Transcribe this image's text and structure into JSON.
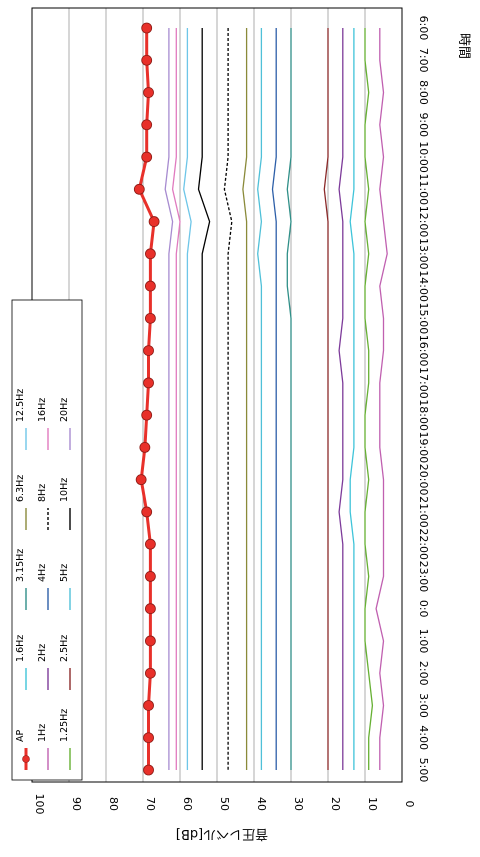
{
  "chart_data": {
    "type": "line",
    "orientation": "rotated 90 degrees clockwise (time axis runs top-to-bottom on the right, level axis runs right-to-left on the bottom)",
    "xlabel": "時間",
    "ylabel": "音圧レベル[dB]",
    "ylim": [
      0,
      100
    ],
    "yticks": [
      0,
      10,
      20,
      30,
      40,
      50,
      60,
      70,
      80,
      90,
      100
    ],
    "grid": true,
    "legend_position": "top-left (in rotated view)",
    "categories": [
      "6:00",
      "7:00",
      "8:00",
      "9:00",
      "10:00",
      "11:00",
      "12:00",
      "13:00",
      "14:00",
      "15:00",
      "16:00",
      "17:00",
      "18:00",
      "19:00",
      "20:00",
      "21:00",
      "22:00",
      "23:00",
      "0:00",
      "1:00",
      "2:00",
      "3:00",
      "4:00",
      "5:00"
    ],
    "category_labels": [
      "6:00",
      "7:00",
      "8:00",
      "9:00",
      "10:00",
      "11:00",
      "12:00",
      "13:00",
      "14:00",
      "15:00",
      "16:00",
      "17:00",
      "18:00",
      "19:00",
      "20:00",
      "21:00",
      "22:00",
      "23:00",
      "0:0",
      "1:00",
      "2:00",
      "3:00",
      "4:00",
      "5:00"
    ],
    "series": [
      {
        "name": "AP",
        "color": "#e8302a",
        "style": "thick-marker",
        "values": [
          69,
          69,
          68.5,
          69,
          69,
          71,
          67,
          68,
          68,
          68,
          68.5,
          68.5,
          69,
          69.5,
          70.5,
          69,
          68,
          68,
          68,
          68,
          68,
          68.5,
          68.5,
          68.5
        ]
      },
      {
        "name": "1Hz",
        "color": "#c060b0",
        "style": "solid",
        "values": [
          6,
          6,
          5,
          6,
          5,
          6,
          5,
          4,
          6,
          5,
          5,
          6,
          6,
          6,
          5,
          5,
          5,
          5,
          7,
          5,
          6,
          5,
          6,
          6
        ]
      },
      {
        "name": "1.25Hz",
        "color": "#66b033",
        "style": "solid",
        "values": [
          10,
          10,
          9,
          10,
          10,
          9,
          10,
          9,
          10,
          10,
          9,
          9,
          10,
          10,
          9,
          10,
          10,
          9,
          10,
          10,
          9,
          8,
          9,
          9
        ]
      },
      {
        "name": "1.6Hz",
        "color": "#3fc4d9",
        "style": "solid",
        "values": [
          13,
          13,
          13,
          13,
          13,
          13,
          14,
          13,
          13,
          13,
          13,
          13,
          13,
          13,
          14,
          14,
          13,
          13,
          13,
          13,
          13,
          13,
          13,
          13
        ]
      },
      {
        "name": "2Hz",
        "color": "#7d3b9a",
        "style": "solid",
        "values": [
          16,
          16,
          16,
          16,
          16,
          17,
          16,
          16,
          16,
          16,
          17,
          16,
          16,
          16,
          16,
          17,
          16,
          16,
          16,
          16,
          16,
          16,
          16,
          16
        ]
      },
      {
        "name": "2.5Hz",
        "color": "#8b2a2a",
        "style": "solid",
        "values": [
          20,
          20,
          20,
          20,
          20,
          21,
          20,
          20,
          20,
          20,
          20,
          20,
          20,
          20,
          20,
          20,
          20,
          20,
          20,
          20,
          20,
          20,
          20,
          20
        ]
      },
      {
        "name": "3.15Hz",
        "color": "#2f8f88",
        "style": "solid",
        "values": [
          30,
          30,
          30,
          30,
          30,
          31,
          30,
          31,
          31,
          30,
          30,
          30,
          30,
          30,
          30,
          30,
          30,
          30,
          30,
          30,
          30,
          30,
          30,
          30
        ]
      },
      {
        "name": "4Hz",
        "color": "#2d5fa8",
        "style": "solid",
        "values": [
          34,
          34,
          34,
          34,
          34,
          35,
          34,
          34,
          34,
          34,
          34,
          34,
          34,
          34,
          34,
          34,
          34,
          34,
          34,
          34,
          34,
          34,
          34,
          34
        ]
      },
      {
        "name": "5Hz",
        "color": "#4fc0d8",
        "style": "solid",
        "values": [
          38,
          38,
          38,
          38,
          38,
          39,
          38,
          39,
          38,
          38,
          38,
          38,
          38,
          38,
          38,
          38,
          38,
          38,
          38,
          38,
          38,
          38,
          38,
          38
        ]
      },
      {
        "name": "6.3Hz",
        "color": "#8a8a3a",
        "style": "solid",
        "values": [
          42,
          42,
          42,
          42,
          42,
          43,
          42,
          42,
          42,
          42,
          42,
          42,
          42,
          42,
          42,
          42,
          42,
          42,
          42,
          42,
          42,
          42,
          42,
          42
        ]
      },
      {
        "name": "8Hz",
        "color": "#000000",
        "style": "dashed",
        "values": [
          47,
          47,
          47,
          47,
          47,
          48,
          46,
          47,
          47,
          47,
          47,
          47,
          47,
          47,
          47,
          47,
          47,
          47,
          47,
          47,
          47,
          47,
          47,
          47
        ]
      },
      {
        "name": "10Hz",
        "color": "#000000",
        "style": "solid",
        "values": [
          54,
          54,
          54,
          54,
          54,
          55,
          52,
          54,
          54,
          54,
          54,
          54,
          54,
          54,
          54,
          54,
          54,
          54,
          54,
          54,
          54,
          54,
          54,
          54
        ]
      },
      {
        "name": "12.5Hz",
        "color": "#6ec6e8",
        "style": "solid",
        "values": [
          58,
          58,
          58,
          58,
          58,
          59,
          57,
          58,
          58,
          58,
          58,
          58,
          58,
          58,
          58,
          58,
          58,
          58,
          58,
          58,
          58,
          58,
          58,
          58
        ]
      },
      {
        "name": "16Hz",
        "color": "#e07bbf",
        "style": "solid",
        "values": [
          61,
          61,
          61,
          61,
          61,
          62,
          60,
          61,
          61,
          61,
          61,
          61,
          61,
          61,
          61,
          61,
          61,
          61,
          61,
          61,
          61,
          61,
          61,
          61
        ]
      },
      {
        "name": "20Hz",
        "color": "#a78bd0",
        "style": "solid",
        "values": [
          63,
          63,
          63,
          63,
          63,
          64,
          62,
          63,
          63,
          63,
          63,
          63,
          63,
          63,
          63,
          63,
          63,
          63,
          63,
          63,
          63,
          63,
          63,
          63
        ]
      }
    ]
  }
}
